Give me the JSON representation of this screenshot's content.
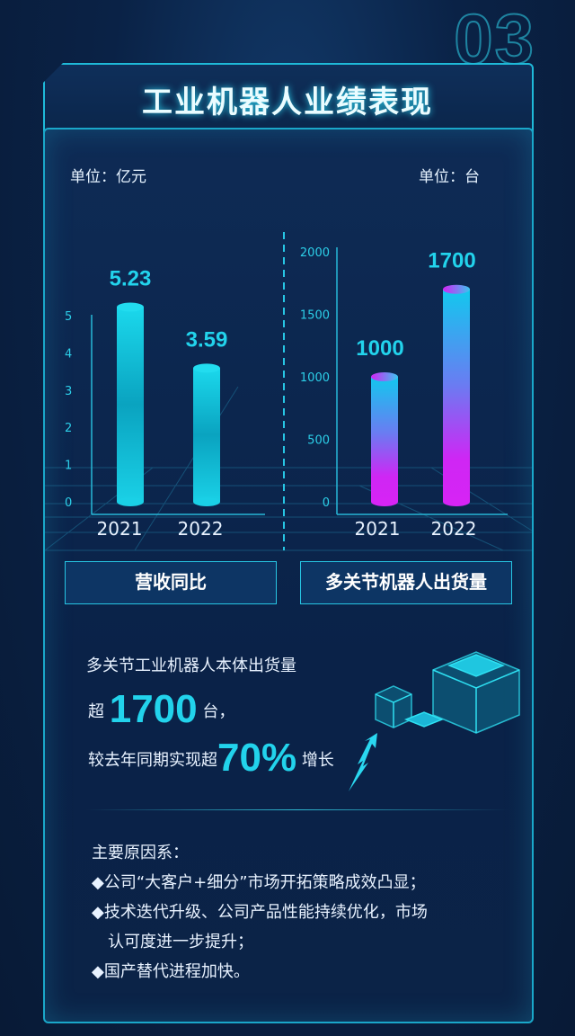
{
  "header": {
    "section_number": "03",
    "title": "工业机器人业绩表现"
  },
  "colors": {
    "accent": "#22d3ec",
    "bar_cyan": "#19c9e3",
    "bar_magenta": "#d324f5",
    "background": "#0a1f3f"
  },
  "chart_data": [
    {
      "type": "bar",
      "title": "营收同比",
      "unit_label": "单位：亿元",
      "categories": [
        "2021",
        "2022"
      ],
      "values": [
        5.23,
        3.59
      ],
      "value_labels": [
        "5.23",
        "3.59"
      ],
      "yticks": [
        "0",
        "1",
        "2",
        "3",
        "4",
        "5"
      ],
      "ylim": [
        0,
        5
      ],
      "grid": false
    },
    {
      "type": "bar",
      "title": "多关节机器人出货量",
      "unit_label": "单位：台",
      "categories": [
        "2021",
        "2022"
      ],
      "values": [
        1000,
        1700
      ],
      "value_labels": [
        "1000",
        "1700"
      ],
      "yticks": [
        "0",
        "500",
        "1000",
        "1500",
        "2000"
      ],
      "ylim": [
        0,
        2000
      ],
      "grid": false
    }
  ],
  "highlight": {
    "line1": "多关节工业机器人本体出货量",
    "prefix2": "超",
    "number": "1700",
    "suffix2": "台，",
    "prefix3": "较去年同期实现超",
    "percent": "70%",
    "suffix3": "增长",
    "icons": [
      "cube-stack-icon",
      "up-arrow-icon"
    ]
  },
  "reasons": {
    "heading": "主要原因系：",
    "items": [
      "◆公司“大客户+细分”市场开拓策略成效凸显；",
      "◆技术迭代升级、公司产品性能持续优化，市场",
      "认可度进一步提升；",
      "◆国产替代进程加快。"
    ]
  }
}
